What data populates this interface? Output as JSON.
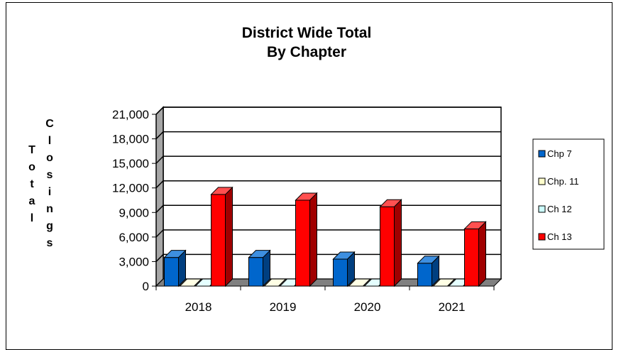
{
  "chart_data": {
    "type": "bar",
    "title_lines": [
      "District Wide Total",
      "By Chapter"
    ],
    "ylabel_columns": [
      "Total",
      "Closings"
    ],
    "xlabel": "",
    "categories": [
      "2018",
      "2019",
      "2020",
      "2021"
    ],
    "y_ticks": [
      "0",
      "3,000",
      "6,000",
      "9,000",
      "12,000",
      "15,000",
      "18,000",
      "21,000"
    ],
    "ylim": [
      0,
      21000
    ],
    "grid": true,
    "legend_position": "right",
    "series": [
      {
        "name": "Chp 7",
        "values": [
          3500,
          3500,
          3300,
          2800
        ],
        "color": "#0066CC",
        "side": "#003F80",
        "top": "#3D8FE0"
      },
      {
        "name": "Chp. 11",
        "values": [
          0,
          0,
          0,
          0
        ],
        "color": "#FFFFCC",
        "side": "#BDBD8F",
        "top": "#FFFFE5"
      },
      {
        "name": "Ch 12",
        "values": [
          0,
          0,
          0,
          0
        ],
        "color": "#CCFFFF",
        "side": "#8FBDBD",
        "top": "#E5FFFF"
      },
      {
        "name": "Ch 13",
        "values": [
          11200,
          10500,
          9700,
          7000
        ],
        "color": "#FF0000",
        "side": "#A00000",
        "top": "#FF5050"
      }
    ],
    "colors": {
      "wall": "#FFFFFF",
      "side_wall": "#A6A6A6",
      "floor": "#808080"
    }
  }
}
